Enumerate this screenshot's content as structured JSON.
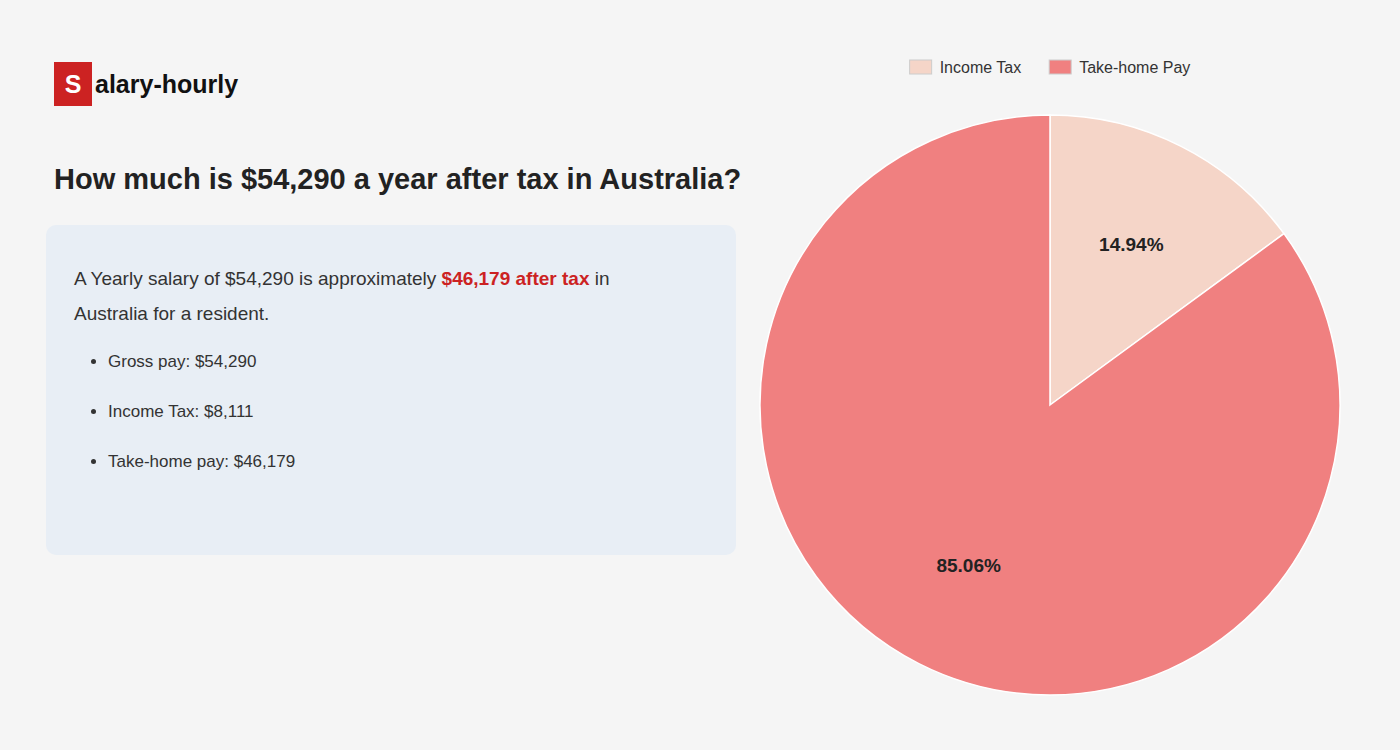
{
  "chart_data": {
    "type": "pie",
    "title": "How much is $54,290 a year after tax in Australia?",
    "categories": [
      "Income Tax",
      "Take-home Pay"
    ],
    "values": [
      14.94,
      85.06
    ],
    "value_labels": [
      "14.94%",
      "85.06%"
    ],
    "colors": [
      "#f5d5c8",
      "#f08080"
    ],
    "data_labels": true,
    "legend": "top",
    "annotations": [
      [
        {
          "text": "S",
          "color": "#cc2222"
        },
        {
          "text": "alary-hourly"
        }
      ],
      [
        {
          "text": "A Yearly salary of $54,290 is approximately "
        },
        {
          "text": "$46,179 after tax",
          "color": "#cc2222"
        },
        {
          "text": " in"
        }
      ],
      [
        {
          "text": "Australia for a resident."
        }
      ],
      [
        {
          "text": "Gross pay: $54,290"
        }
      ],
      [
        {
          "text": "Income Tax: $8,111"
        }
      ],
      [
        {
          "text": "Take-home pay: $46,179"
        }
      ]
    ]
  }
}
